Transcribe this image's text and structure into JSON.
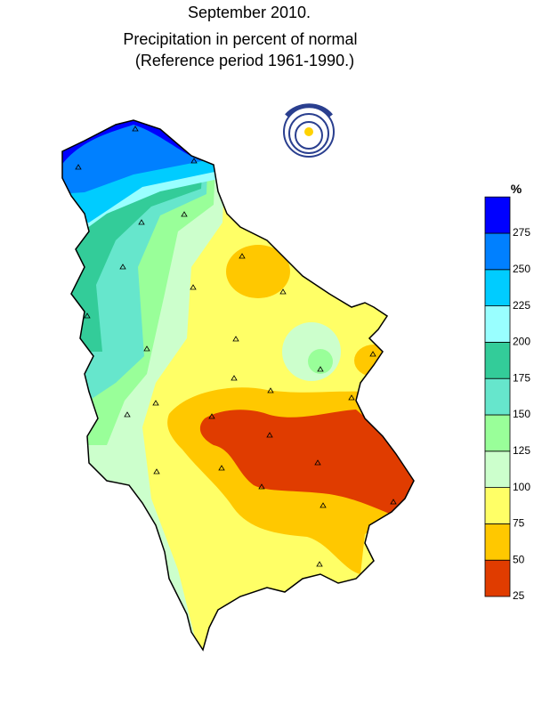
{
  "header": {
    "title": "September 2010.",
    "subtitle": "Precipitation in percent of normal",
    "reference": "(Reference period 1961-1990.)"
  },
  "legend": {
    "unit": "%",
    "ticks": [
      25,
      50,
      75,
      100,
      125,
      150,
      175,
      200,
      225,
      250,
      275
    ],
    "colors": [
      "#e03c00",
      "#ffc800",
      "#ffff66",
      "#ccffcc",
      "#99ff99",
      "#66e6cc",
      "#33cc99",
      "#99ffff",
      "#00ccff",
      "#0080ff",
      "#0000ff"
    ]
  }
}
